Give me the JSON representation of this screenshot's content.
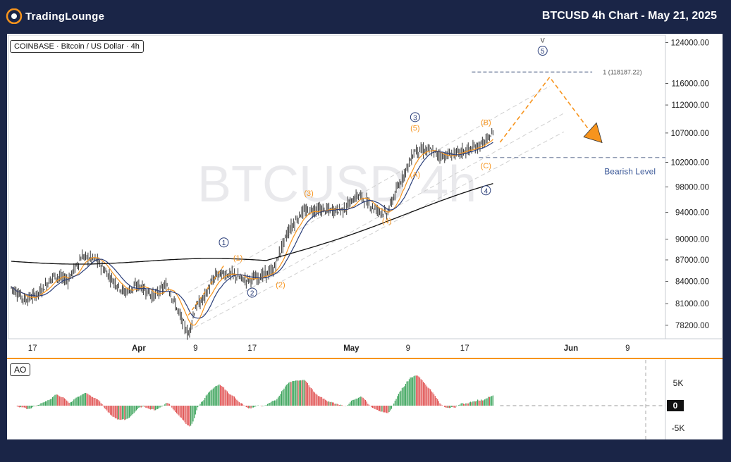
{
  "header": {
    "brand": "TradingLounge",
    "chart_title": "BTCUSD 4h Chart - May 21, 2025"
  },
  "symbol_label": "COINBASE · Bitcoin / US Dollar · 4h",
  "watermark": "BTCUSD  4h",
  "colors": {
    "background": "#1a2547",
    "accent": "#f7941d",
    "bull": "#3aa35a",
    "bear": "#e05050",
    "wave_blue": "#2b3f7a",
    "wave_orange": "#f7941d"
  },
  "chart_data": [
    {
      "type": "line",
      "name": "price",
      "y_scale": "log",
      "ylim": [
        76500,
        125500
      ],
      "y_ticks": [
        "124000.00",
        "116000.00",
        "112000.00",
        "107000.00",
        "102000.00",
        "98000.00",
        "94000.00",
        "90000.00",
        "87000.00",
        "84000.00",
        "81000.00",
        "78200.00"
      ],
      "x_ticks": [
        "17",
        "Apr",
        "9",
        "17",
        "May",
        "9",
        "17",
        "Jun",
        "9"
      ],
      "bearish_level": {
        "value": 102800,
        "label": "Bearish Level"
      },
      "target_level": {
        "value": 118187.22,
        "label": "1 (118187.22)"
      },
      "wave_labels": [
        {
          "text": "1",
          "style": "blue-circle",
          "date": "2025-04-13",
          "price": 89100
        },
        {
          "text": "2",
          "style": "blue-circle",
          "date": "2025-04-17",
          "price": 82100
        },
        {
          "text": "3",
          "style": "blue-circle",
          "date": "2025-05-10",
          "price": 109300
        },
        {
          "text": "4",
          "style": "blue-circle",
          "date": "2025-05-20",
          "price": 97000
        },
        {
          "text": "5",
          "style": "blue-circle",
          "date": "2025-05-28",
          "price": 121800
        },
        {
          "text": "v",
          "style": "gray-text",
          "date": "2025-05-28",
          "price": 124000
        },
        {
          "text": "(1)",
          "style": "orange",
          "date": "2025-04-15",
          "price": 86900
        },
        {
          "text": "(2)",
          "style": "orange",
          "date": "2025-04-21",
          "price": 83200
        },
        {
          "text": "(3)",
          "style": "orange",
          "date": "2025-04-25",
          "price": 96600
        },
        {
          "text": "(4)",
          "style": "orange",
          "date": "2025-05-06",
          "price": 92300
        },
        {
          "text": "(5)",
          "style": "orange",
          "date": "2025-05-10",
          "price": 107400
        },
        {
          "text": "(A)",
          "style": "orange",
          "date": "2025-05-10",
          "price": 99600
        },
        {
          "text": "(B)",
          "style": "orange",
          "date": "2025-05-20",
          "price": 108400
        },
        {
          "text": "(C)",
          "style": "orange",
          "date": "2025-05-20",
          "price": 101000
        }
      ],
      "series": [
        {
          "dates": [
            "2025-03-14",
            "2025-03-16",
            "2025-03-18",
            "2025-03-20",
            "2025-03-22",
            "2025-03-24",
            "2025-03-26",
            "2025-03-28",
            "2025-03-30",
            "2025-04-01",
            "2025-04-03",
            "2025-04-05",
            "2025-04-07",
            "2025-04-08",
            "2025-04-09",
            "2025-04-10",
            "2025-04-12",
            "2025-04-14",
            "2025-04-16",
            "2025-04-18",
            "2025-04-20",
            "2025-04-22",
            "2025-04-24",
            "2025-04-26",
            "2025-04-28",
            "2025-04-30",
            "2025-05-02",
            "2025-05-04",
            "2025-05-06",
            "2025-05-08",
            "2025-05-10",
            "2025-05-12",
            "2025-05-14",
            "2025-05-16",
            "2025-05-18",
            "2025-05-20",
            "2025-05-21"
          ],
          "values": [
            83200,
            81500,
            82500,
            84800,
            84200,
            87500,
            87000,
            84500,
            82500,
            83500,
            82000,
            83500,
            79000,
            77000,
            80500,
            81500,
            85000,
            85000,
            84200,
            84600,
            85500,
            91000,
            94000,
            94500,
            94300,
            94500,
            96800,
            94800,
            93800,
            99000,
            104000,
            104000,
            103000,
            103600,
            104200,
            105500,
            107000
          ]
        }
      ]
    },
    {
      "type": "bar",
      "name": "AO",
      "label": "AO",
      "y_ticks": [
        "5K",
        "0",
        "-5K"
      ],
      "ylim": [
        -7500,
        9500
      ]
    }
  ]
}
